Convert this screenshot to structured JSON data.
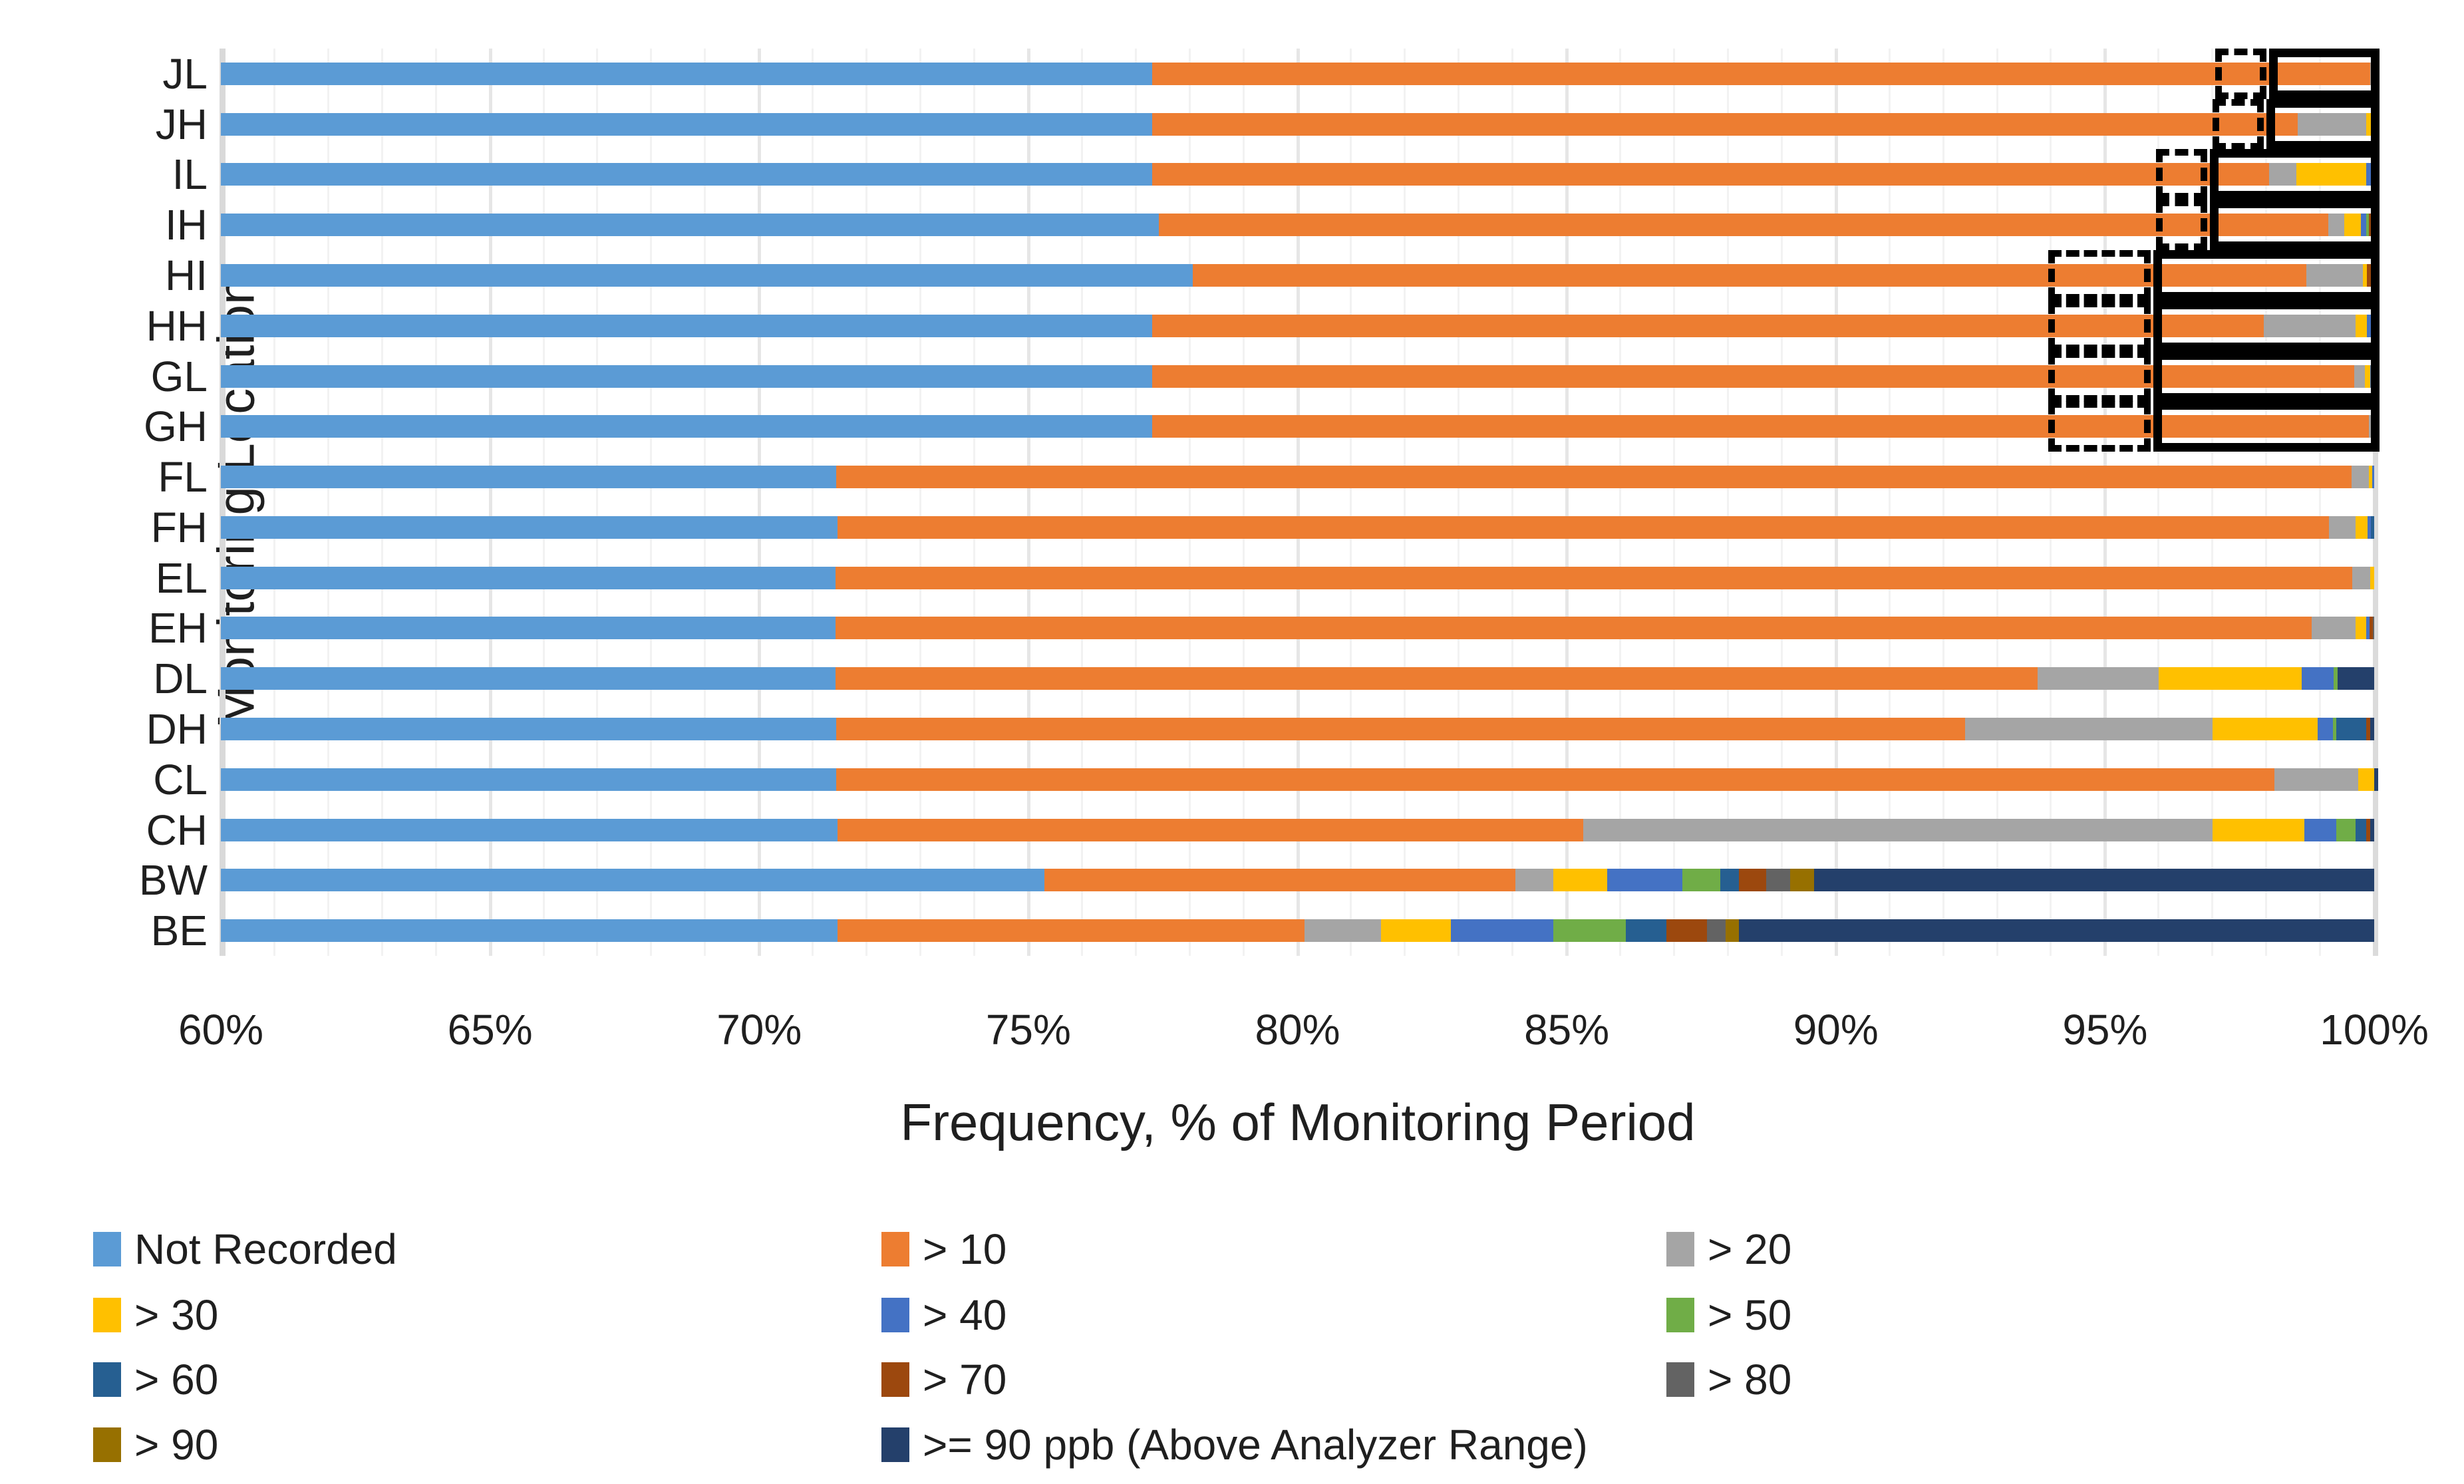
{
  "chart_data": {
    "type": "bar",
    "orientation": "horizontal",
    "stacked": true,
    "title": "",
    "xlabel": "Frequency, % of Monitoring Period",
    "ylabel": "Monitoring Location",
    "x_min": 60,
    "x_max": 100,
    "x_tick_labels": [
      "60%",
      "65%",
      "70%",
      "75%",
      "80%",
      "85%",
      "90%",
      "95%",
      "100%"
    ],
    "grid": "minor 1% light, major 5% darker",
    "legend_position": "bottom",
    "categories": [
      "JL",
      "JH",
      "IL",
      "IH",
      "HI",
      "HH",
      "GL",
      "GH",
      "FL",
      "FH",
      "EL",
      "EH",
      "DL",
      "DH",
      "CL",
      "CH",
      "BW",
      "BE"
    ],
    "series": [
      {
        "name": "Not Recorded",
        "color": "#5B9BD5",
        "values": [
          17.3,
          17.3,
          17.3,
          17.42,
          18.05,
          17.3,
          17.3,
          17.3,
          11.43,
          11.45,
          11.42,
          11.42,
          11.42,
          11.43,
          11.43,
          11.45,
          15.3,
          11.45
        ]
      },
      {
        "name": "> 10",
        "color": "#ED7D31",
        "values": [
          22.63,
          21.28,
          20.75,
          21.73,
          20.69,
          20.65,
          22.33,
          22.6,
          28.15,
          27.71,
          28.17,
          27.42,
          22.33,
          20.97,
          26.72,
          13.86,
          8.75,
          8.68
        ]
      },
      {
        "name": "> 20",
        "color": "#A5A5A5",
        "values": [
          0.07,
          1.27,
          0.5,
          0.3,
          1.05,
          1.7,
          0.2,
          0.1,
          0.32,
          0.49,
          0.34,
          0.81,
          2.25,
          4.6,
          1.55,
          11.69,
          0.7,
          1.42
        ]
      },
      {
        "name": "> 30",
        "color": "#FFC000",
        "values": [
          0,
          0.15,
          1.3,
          0.3,
          0.08,
          0.22,
          0.09,
          0,
          0.06,
          0.23,
          0.07,
          0.2,
          2.65,
          1.95,
          0.3,
          1.7,
          1.0,
          1.3
        ]
      },
      {
        "name": "> 40",
        "color": "#4472C4",
        "values": [
          0,
          0,
          0.1,
          0.1,
          0,
          0.13,
          0.08,
          0,
          0.04,
          0.06,
          0,
          0.06,
          0.6,
          0.28,
          0,
          0.6,
          1.4,
          1.9
        ]
      },
      {
        "name": "> 50",
        "color": "#70AD47",
        "values": [
          0,
          0,
          0.05,
          0.05,
          0,
          0,
          0,
          0,
          0,
          0,
          0,
          0,
          0.07,
          0.07,
          0,
          0.35,
          0.7,
          1.35
        ]
      },
      {
        "name": "> 60",
        "color": "#265F91",
        "values": [
          0,
          0,
          0,
          0,
          0,
          0,
          0,
          0,
          0,
          0.06,
          0,
          0,
          0,
          0.55,
          0,
          0.2,
          0.35,
          0.75
        ]
      },
      {
        "name": "> 70",
        "color": "#9C480E",
        "values": [
          0,
          0,
          0,
          0.05,
          0.08,
          0,
          0,
          0,
          0,
          0,
          0,
          0.06,
          0,
          0.08,
          0,
          0.07,
          0.5,
          0.75
        ]
      },
      {
        "name": "> 80",
        "color": "#636363",
        "values": [
          0,
          0,
          0,
          0.05,
          0.05,
          0,
          0,
          0,
          0,
          0,
          0,
          0.03,
          0,
          0,
          0,
          0,
          0.45,
          0.35
        ]
      },
      {
        "name": "> 90",
        "color": "#977000",
        "values": [
          0,
          0,
          0,
          0,
          0,
          0,
          0,
          0,
          0,
          0,
          0,
          0,
          0,
          0,
          0,
          0,
          0.45,
          0.25
        ]
      },
      {
        "name": ">= 90 ppb (Above Analyzer Range)",
        "color": "#24406B",
        "values": [
          0,
          0,
          0,
          0,
          0,
          0,
          0,
          0,
          0,
          0,
          0,
          0,
          0.68,
          0.07,
          0.08,
          0.08,
          10.4,
          11.8
        ]
      }
    ],
    "highlight_boxes": [
      {
        "category": "JL",
        "dashed": [
          97.05,
          98.0
        ],
        "solid": [
          98.05,
          100.1
        ]
      },
      {
        "category": "JH",
        "dashed": [
          97.0,
          97.95
        ],
        "solid": [
          98.0,
          100.1
        ]
      },
      {
        "category": "IL",
        "dashed": [
          95.95,
          96.9
        ],
        "solid": [
          96.95,
          100.1
        ]
      },
      {
        "category": "IH",
        "dashed": [
          95.95,
          96.9
        ],
        "solid": [
          96.95,
          100.1
        ]
      },
      {
        "category": "HI",
        "dashed": [
          93.95,
          95.85
        ],
        "solid": [
          95.9,
          100.1
        ]
      },
      {
        "category": "HH",
        "dashed": [
          93.95,
          95.85
        ],
        "solid": [
          95.9,
          100.1
        ]
      },
      {
        "category": "GL",
        "dashed": [
          93.95,
          95.85
        ],
        "solid": [
          95.9,
          100.1
        ]
      },
      {
        "category": "GH",
        "dashed": [
          93.95,
          95.85
        ],
        "solid": [
          95.9,
          100.1
        ]
      }
    ]
  }
}
